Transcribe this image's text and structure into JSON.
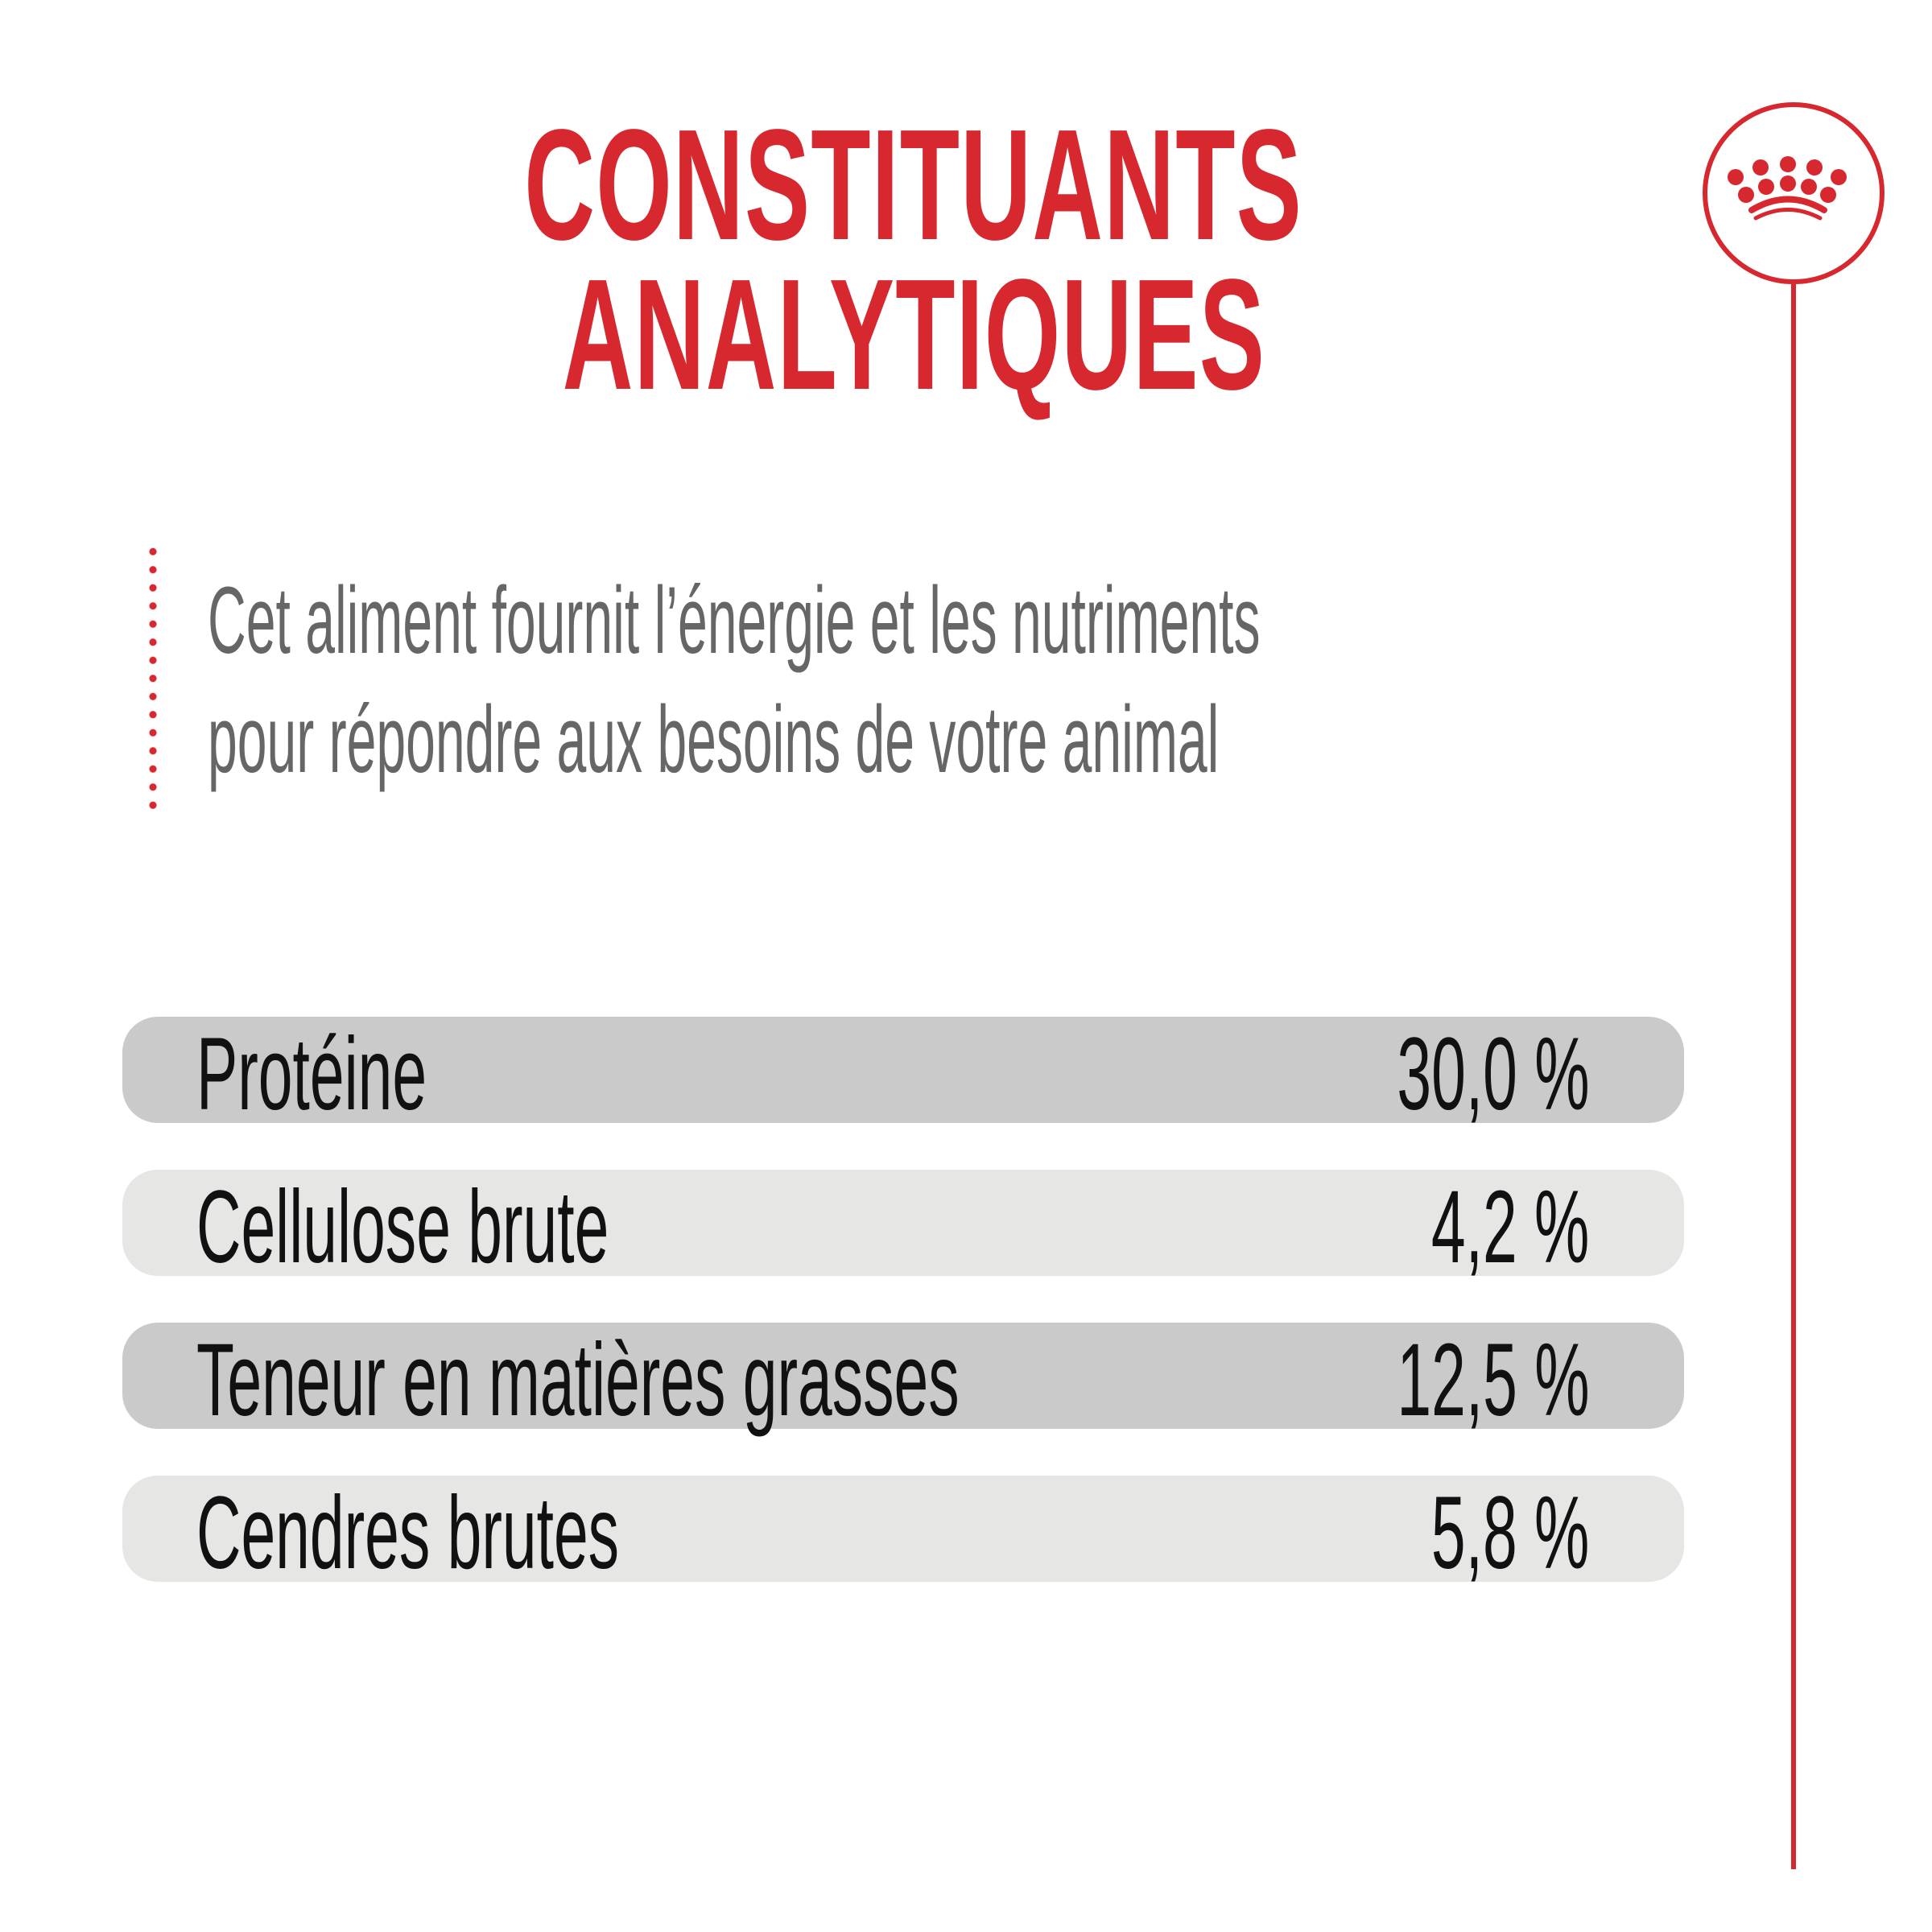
{
  "title": {
    "line1": "CONSTITUANTS",
    "line2": "ANALYTIQUES"
  },
  "description": {
    "line1": "Cet aliment fournit l’énergie et les nutriments",
    "line2": "pour répondre aux besoins de votre animal"
  },
  "constituents": [
    {
      "label": "Protéine",
      "value": "30,0 %"
    },
    {
      "label": "Cellulose brute",
      "value": "4,2 %"
    },
    {
      "label": "Teneur en matières grasses",
      "value": "12,5 %"
    },
    {
      "label": "Cendres brutes",
      "value": "5,8 %"
    }
  ],
  "logo": {
    "icon": "crown-icon"
  },
  "colors": {
    "accent": "#d7282f",
    "row_dark": "#cbcacb",
    "row_light": "#e6e6e5",
    "text": "#111111",
    "description": "#666666"
  }
}
